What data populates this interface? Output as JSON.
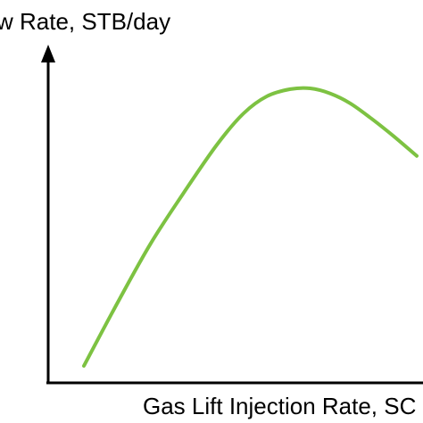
{
  "chart_data": {
    "type": "line",
    "title": "",
    "xlabel": "Gas Lift Injection Rate, SC",
    "ylabel": "w Rate, STB/day",
    "grid": false,
    "legend": "none",
    "x_ticks_shown": false,
    "y_ticks_shown": false,
    "series": [
      {
        "color": "#7dc242",
        "x": [
          0.0,
          0.1,
          0.2,
          0.3,
          0.4,
          0.48,
          0.55,
          0.62,
          0.68,
          0.74,
          0.8,
          0.86,
          0.93,
          1.0
        ],
        "values": [
          0.0,
          0.22,
          0.43,
          0.61,
          0.78,
          0.89,
          0.95,
          0.975,
          0.978,
          0.96,
          0.925,
          0.875,
          0.81,
          0.74
        ]
      }
    ]
  }
}
